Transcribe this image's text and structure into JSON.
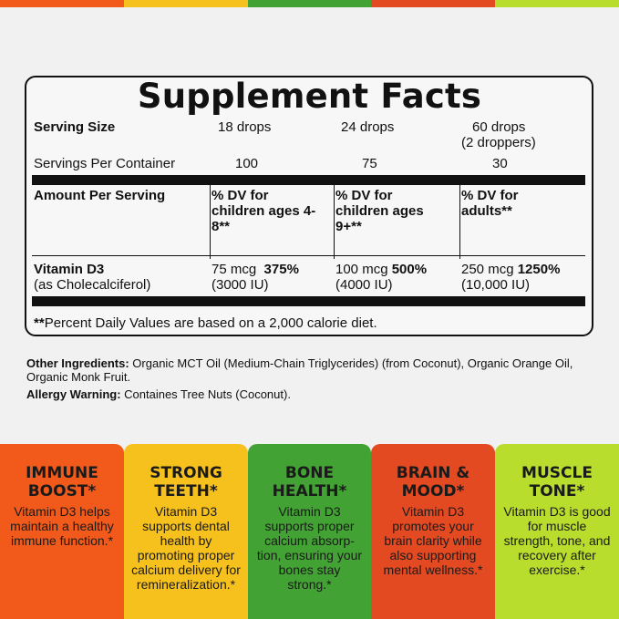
{
  "colors": {
    "orange": "#f15a1a",
    "yellow": "#f7c11d",
    "green": "#42a233",
    "red": "#e34a22",
    "lime": "#b9dd2d",
    "ink": "#111111",
    "bg": "#f1f1f1"
  },
  "facts": {
    "title": "Supplement Facts",
    "serving_size_label": "Serving Size",
    "serving_sizes": [
      "18 drops",
      "24 drops",
      "60 drops"
    ],
    "serving_size_note": "(2 droppers)",
    "servings_label": "Servings Per Container",
    "servings": [
      "100",
      "75",
      "30"
    ],
    "amount_label": "Amount Per Serving",
    "dv_headers": [
      "% DV for children ages 4-8**",
      "% DV for children ages 9+**",
      "% DV for adults**"
    ],
    "nutrient_name": "Vitamin D3",
    "nutrient_sub": "(as Cholecalciferol)",
    "amounts": [
      "75 mcg",
      "100 mcg",
      "250 mcg"
    ],
    "percents": [
      "375%",
      "500%",
      "1250%"
    ],
    "iu": [
      "(3000 IU)",
      "(4000 IU)",
      "(10,000 IU)"
    ],
    "footnote_mark": "**",
    "footnote": "Percent Daily Values are based on a 2,000 calorie diet."
  },
  "ingredients": {
    "other_label": "Other Ingredients:",
    "other_text": " Organic MCT Oil (Medium-Chain Triglycerides) (from Coconut), Organic Orange Oil, Organic Monk Fruit.",
    "allergy_label": "Allergy Warning:",
    "allergy_text": " Containes Tree Nuts (Coconut)."
  },
  "tiles": [
    {
      "title": "IMMUNE BOOST*",
      "text": "Vitamin D3 helps maintain a healthy immune function.*"
    },
    {
      "title": "STRONG TEETH*",
      "text": "Vitamin D3 supports dental health by promoting proper calcium delivery for remineralization.*"
    },
    {
      "title": "BONE HEALTH*",
      "text": "Vitamin D3 supports proper calcium absorp-tion, ensuring your bones stay strong.*"
    },
    {
      "title": "BRAIN & MOOD*",
      "text": "Vitamin D3 promotes your brain clarity while also supporting mental wellness.*"
    },
    {
      "title": "MUSCLE TONE*",
      "text": "Vitamin D3 is good for muscle strength, tone, and recovery after exercise.*"
    }
  ]
}
